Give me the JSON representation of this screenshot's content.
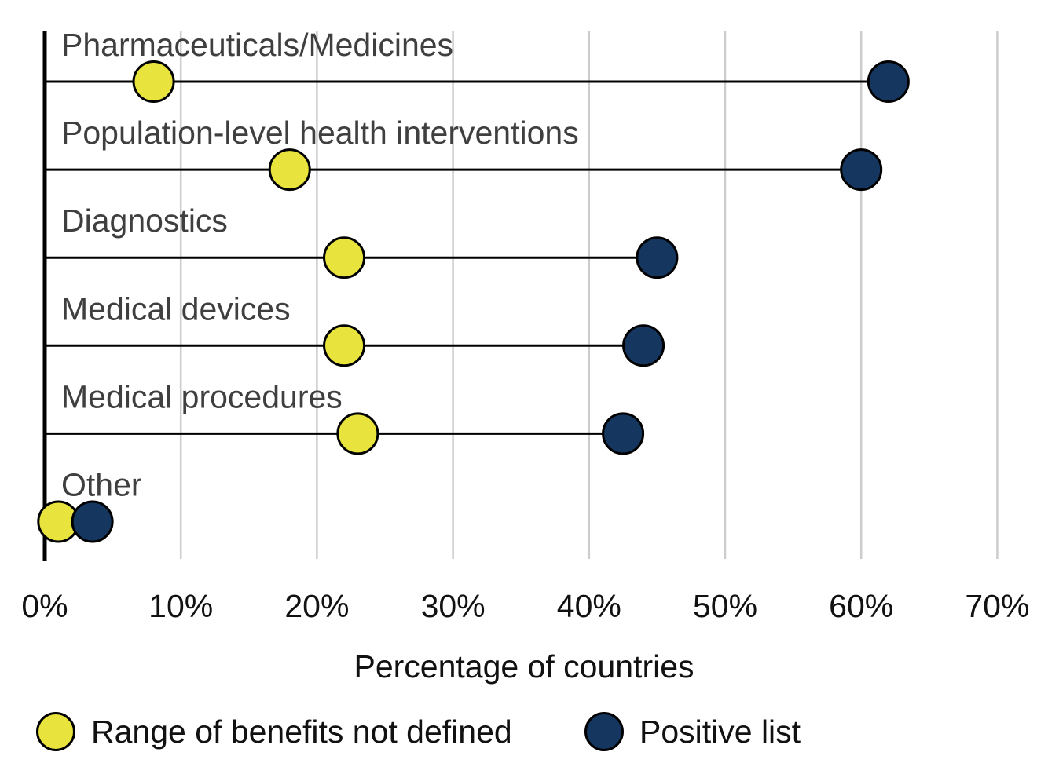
{
  "chart_data": {
    "type": "scatter",
    "subtype": "dumbbell",
    "title": "",
    "categories": [
      "Pharmaceuticals/Medicines",
      "Population-level health interventions",
      "Diagnostics",
      "Medical devices",
      "Medical procedures",
      "Other"
    ],
    "series": [
      {
        "name": "Range of benefits not defined",
        "color": "#e8e33d",
        "values": [
          8,
          18,
          22,
          22,
          23,
          1
        ]
      },
      {
        "name": "Positive list",
        "color": "#14365f",
        "values": [
          62,
          60,
          45,
          44,
          42.5,
          3.5
        ]
      }
    ],
    "xlabel": "Percentage of countries",
    "ylabel": "",
    "xlim": [
      0,
      70
    ],
    "x_ticks": [
      0,
      10,
      20,
      30,
      40,
      50,
      60,
      70
    ],
    "x_tick_labels": [
      "0%",
      "10%",
      "20%",
      "30%",
      "40%",
      "50%",
      "60%",
      "70%"
    ],
    "grid": "vertical gridlines at each 10% tick",
    "legend_position": "bottom"
  },
  "colors": {
    "background": "#ffffff",
    "gridline": "#cccccc",
    "axis_line": "#000000",
    "connector_line": "#000000",
    "dot_outline": "#000000",
    "category_label": "#3f3f3f",
    "tick_label": "#111111"
  }
}
